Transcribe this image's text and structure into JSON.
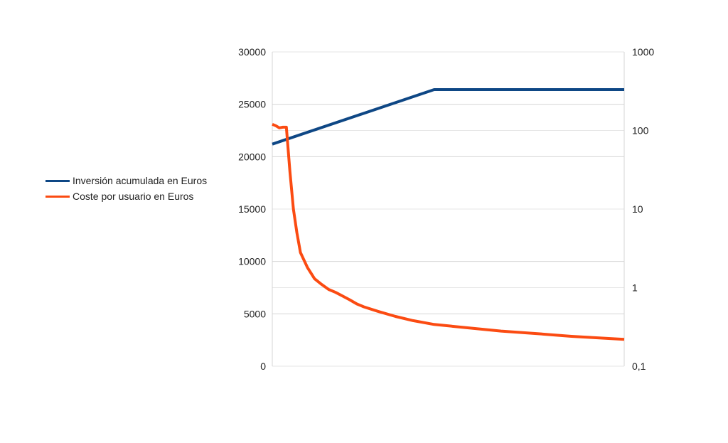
{
  "chart_data": {
    "type": "line",
    "title": "",
    "xlabel": "",
    "ylabel": "",
    "y_left": {
      "ylim": [
        0,
        30000
      ],
      "ticks": [
        "0",
        "5000",
        "10000",
        "15000",
        "20000",
        "25000",
        "30000"
      ],
      "tick_values": [
        0,
        5000,
        10000,
        15000,
        20000,
        25000,
        30000
      ]
    },
    "y_right": {
      "scale": "log",
      "ylim": [
        0.1,
        1000
      ],
      "ticks": [
        "0,1",
        "1",
        "10",
        "100",
        "1000"
      ],
      "tick_values": [
        0.1,
        1,
        10,
        100,
        1000
      ]
    },
    "x": {
      "range": [
        0,
        100
      ],
      "labels_shown": false
    },
    "grid": "horizontal",
    "legend_position": "left",
    "series": [
      {
        "name": "Inversión acumulada en Euros",
        "axis": "left",
        "color": "#0e4785",
        "points": [
          [
            0,
            21200
          ],
          [
            46,
            26400
          ],
          [
            100,
            26400
          ]
        ]
      },
      {
        "name": "Coste por usuario en Euros",
        "axis": "right",
        "color": "#fb4b12",
        "points": [
          [
            0,
            120
          ],
          [
            1,
            115
          ],
          [
            2,
            108
          ],
          [
            3,
            110
          ],
          [
            4,
            110
          ],
          [
            5,
            30
          ],
          [
            6,
            10
          ],
          [
            7,
            5
          ],
          [
            8,
            2.8
          ],
          [
            10,
            1.8
          ],
          [
            12,
            1.3
          ],
          [
            14,
            1.1
          ],
          [
            16,
            0.95
          ],
          [
            18,
            0.87
          ],
          [
            20,
            0.78
          ],
          [
            22,
            0.7
          ],
          [
            24,
            0.62
          ],
          [
            26,
            0.57
          ],
          [
            30,
            0.5
          ],
          [
            35,
            0.43
          ],
          [
            40,
            0.38
          ],
          [
            46,
            0.34
          ],
          [
            55,
            0.31
          ],
          [
            65,
            0.28
          ],
          [
            75,
            0.26
          ],
          [
            85,
            0.24
          ],
          [
            100,
            0.22
          ]
        ]
      }
    ]
  }
}
